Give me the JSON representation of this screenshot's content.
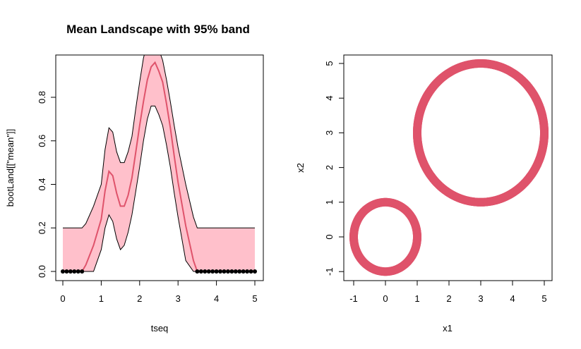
{
  "chart_data": [
    {
      "type": "area",
      "title": "Mean Landscape with 95% band",
      "xlabel": "tseq",
      "ylabel": "bootLand[[\"mean\"]]",
      "xlim": [
        0,
        5
      ],
      "ylim": [
        0,
        0.95
      ],
      "x_ticks": [
        "0",
        "1",
        "2",
        "3",
        "4",
        "5"
      ],
      "y_ticks": [
        "0.0",
        "0.2",
        "0.4",
        "0.6",
        "0.8"
      ],
      "band_color": "#FFC0CB",
      "mean_color": "#DF536B",
      "point_color": "#000000",
      "series": [
        {
          "role": "upper",
          "x": [
            0,
            0.5,
            0.6,
            0.8,
            1.0,
            1.1,
            1.2,
            1.3,
            1.4,
            1.5,
            1.6,
            1.7,
            1.8,
            1.9,
            2.0,
            2.1,
            2.2,
            2.3,
            2.4,
            2.5,
            2.6,
            2.7,
            2.8,
            2.9,
            3.0,
            3.2,
            3.4,
            3.5,
            5.0
          ],
          "y": [
            0.2,
            0.2,
            0.22,
            0.3,
            0.4,
            0.56,
            0.66,
            0.64,
            0.55,
            0.5,
            0.5,
            0.55,
            0.62,
            0.75,
            0.87,
            0.98,
            1.05,
            1.1,
            1.08,
            1.02,
            0.97,
            0.88,
            0.78,
            0.67,
            0.57,
            0.4,
            0.25,
            0.2,
            0.2
          ]
        },
        {
          "role": "mean",
          "x": [
            0,
            0.5,
            0.6,
            0.8,
            1.0,
            1.1,
            1.2,
            1.3,
            1.4,
            1.5,
            1.6,
            1.7,
            1.8,
            1.9,
            2.0,
            2.1,
            2.2,
            2.3,
            2.4,
            2.5,
            2.6,
            2.7,
            2.8,
            2.9,
            3.0,
            3.2,
            3.4,
            3.5,
            5.0
          ],
          "y": [
            0,
            0,
            0.03,
            0.12,
            0.24,
            0.37,
            0.46,
            0.44,
            0.36,
            0.3,
            0.3,
            0.35,
            0.43,
            0.55,
            0.67,
            0.78,
            0.88,
            0.94,
            0.96,
            0.92,
            0.87,
            0.77,
            0.66,
            0.53,
            0.41,
            0.21,
            0.05,
            0,
            0
          ]
        },
        {
          "role": "lower",
          "x": [
            0,
            0.5,
            0.6,
            0.8,
            1.0,
            1.1,
            1.2,
            1.3,
            1.4,
            1.5,
            1.6,
            1.7,
            1.8,
            1.9,
            2.0,
            2.1,
            2.2,
            2.3,
            2.4,
            2.5,
            2.6,
            2.7,
            2.8,
            2.9,
            3.0,
            3.2,
            3.4,
            3.5,
            5.0
          ],
          "y": [
            0,
            0,
            0,
            0,
            0.1,
            0.2,
            0.26,
            0.23,
            0.15,
            0.1,
            0.12,
            0.18,
            0.26,
            0.37,
            0.48,
            0.6,
            0.7,
            0.76,
            0.76,
            0.72,
            0.67,
            0.58,
            0.48,
            0.36,
            0.25,
            0.05,
            0,
            0,
            0
          ]
        }
      ],
      "zero_points_x": [
        0,
        0.1,
        0.2,
        0.3,
        0.4,
        0.5,
        3.5,
        3.6,
        3.7,
        3.8,
        3.9,
        4.0,
        4.1,
        4.2,
        4.3,
        4.4,
        4.5,
        4.6,
        4.7,
        4.8,
        4.9,
        5.0
      ]
    },
    {
      "type": "scatter",
      "xlabel": "x1",
      "ylabel": "x2",
      "xlim": [
        -1.2,
        5.2
      ],
      "ylim": [
        -1.1,
        5.2
      ],
      "x_ticks": [
        "-1",
        "0",
        "1",
        "2",
        "3",
        "4",
        "5"
      ],
      "y_ticks": [
        "-1",
        "0",
        "1",
        "2",
        "3",
        "4",
        "5"
      ],
      "point_color": "#DF536B",
      "circles": [
        {
          "center": [
            0,
            0
          ],
          "radius": 1
        },
        {
          "center": [
            3,
            3
          ],
          "radius": 2
        }
      ]
    }
  ]
}
